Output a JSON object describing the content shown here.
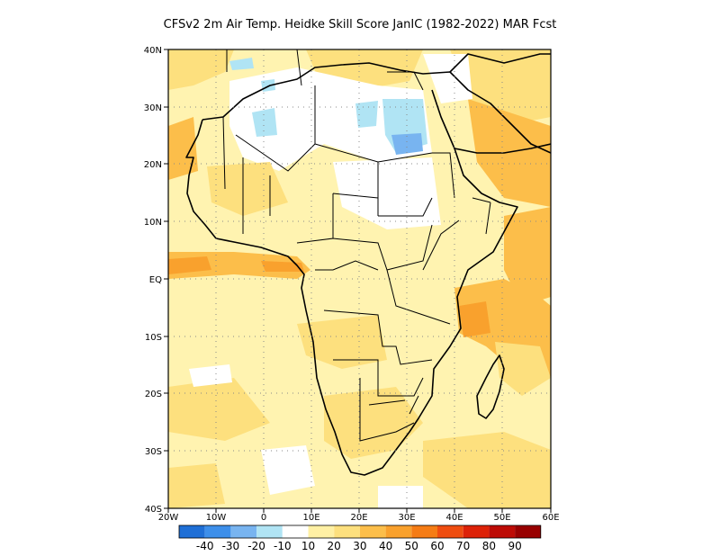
{
  "title": "CFSv2  2m Air Temp. Heidke Skill Score JanIC (1982-2022) MAR Fcst",
  "map": {
    "lat_labels": [
      "40N",
      "30N",
      "20N",
      "10N",
      "EQ",
      "10S",
      "20S",
      "30S",
      "40S"
    ],
    "lon_labels": [
      "20W",
      "10W",
      "0",
      "10E",
      "20E",
      "30E",
      "40E",
      "50E",
      "60E"
    ],
    "lon_range": [
      -20,
      60
    ],
    "lat_range": [
      -40,
      40
    ],
    "grid": "dotted"
  },
  "colorbar": {
    "colors": [
      "#1f6fd6",
      "#3d8fea",
      "#78b4f0",
      "#b0e4f4",
      "#ffffff",
      "#fff0a4",
      "#fde07e",
      "#fcbe4a",
      "#f9a12d",
      "#f57c15",
      "#ef4d10",
      "#dd2208",
      "#bd0b05",
      "#980000"
    ],
    "labels": [
      "-40",
      "-30",
      "-20",
      "-10",
      "10",
      "20",
      "30",
      "40",
      "50",
      "60",
      "70",
      "80",
      "90"
    ]
  }
}
